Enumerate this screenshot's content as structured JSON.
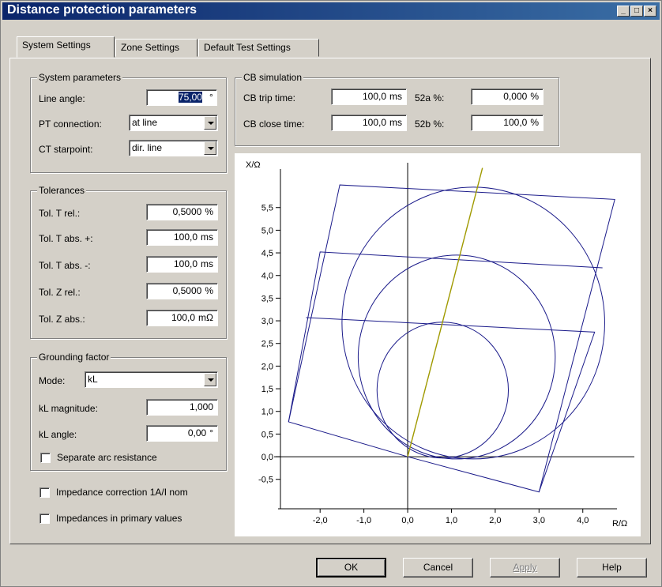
{
  "window": {
    "title": "Distance protection parameters"
  },
  "tabs": [
    "System Settings",
    "Zone Settings",
    "Default Test Settings"
  ],
  "system": {
    "title": "System parameters",
    "line_angle_label": "Line angle:",
    "line_angle": "75,00",
    "line_angle_unit": "°",
    "pt_label": "PT connection:",
    "pt_value": "at line",
    "ct_label": "CT starpoint:",
    "ct_value": "dir. line"
  },
  "cb": {
    "title": "CB simulation",
    "trip_label": "CB trip time:",
    "trip_value": "100,0",
    "trip_unit": "ms",
    "close_label": "CB close time:",
    "close_value": "100,0",
    "close_unit": "ms",
    "a52_label": "52a %:",
    "a52_value": "0,000",
    "a52_unit": "%",
    "b52_label": "52b %:",
    "b52_value": "100,0",
    "b52_unit": "%"
  },
  "tolerances": {
    "title": "Tolerances",
    "rows": [
      {
        "label": "Tol. T rel.:",
        "value": "0,5000",
        "unit": "%"
      },
      {
        "label": "Tol. T abs. +:",
        "value": "100,0",
        "unit": "ms"
      },
      {
        "label": "Tol. T abs. -:",
        "value": "100,0",
        "unit": "ms"
      },
      {
        "label": "Tol. Z rel.:",
        "value": "0,5000",
        "unit": "%"
      },
      {
        "label": "Tol. Z abs.:",
        "value": "100,0",
        "unit": "mΩ"
      }
    ]
  },
  "grounding": {
    "title": "Grounding factor",
    "mode_label": "Mode:",
    "mode_value": "kL",
    "mag_label": "kL magnitude:",
    "mag_value": "1,000",
    "angle_label": "kL angle:",
    "angle_value": "0,00",
    "angle_unit": "°",
    "separate_arc": "Separate arc resistance"
  },
  "checks": {
    "imp_correction": "Impedance correction 1A/I nom",
    "imp_primary": "Impedances in primary values"
  },
  "buttons": {
    "ok": "OK",
    "cancel": "Cancel",
    "apply": "Apply",
    "help": "Help"
  },
  "chart_data": {
    "type": "scatter",
    "xlabel": "R/Ω",
    "ylabel": "X/Ω",
    "xlim": [
      -3.05,
      4.6
    ],
    "ylim": [
      -1.15,
      6.35
    ],
    "x_ticks": [
      -2.0,
      -1.0,
      0.0,
      1.0,
      2.0,
      3.0,
      4.0
    ],
    "x_tick_labels": [
      "-2,0",
      "-1,0",
      "0,0",
      "1,0",
      "2,0",
      "3,0",
      "4,0"
    ],
    "y_ticks": [
      -0.5,
      0.0,
      0.5,
      1.0,
      1.5,
      2.0,
      2.5,
      3.0,
      3.5,
      4.0,
      4.5,
      5.0,
      5.5
    ],
    "y_tick_labels": [
      "-0,5",
      "0,0",
      "0,5",
      "1,0",
      "1,5",
      "2,0",
      "2,5",
      "3,0",
      "3,5",
      "4,0",
      "4,5",
      "5,0",
      "5,5"
    ],
    "line_angle_deg": 75,
    "line_color": "#a09a00",
    "zone_color": "#1b1b8a",
    "circles": [
      {
        "cx": 0.8,
        "cy": 1.47,
        "r": 1.5
      },
      {
        "cx": 1.12,
        "cy": 2.2,
        "r": 2.25
      },
      {
        "cx": 1.5,
        "cy": 2.95,
        "r": 3.0
      }
    ],
    "polylines": [
      [
        [
          0.0,
          0.0
        ],
        [
          -2.72,
          0.77
        ],
        [
          -2.0,
          4.52
        ],
        [
          4.45,
          4.17
        ]
      ],
      [
        [
          -2.32,
          3.07
        ],
        [
          4.27,
          2.75
        ],
        [
          3.0,
          -0.78
        ],
        [
          0.0,
          0.0
        ]
      ],
      [
        [
          -2.72,
          0.77
        ],
        [
          -1.55,
          6.0
        ],
        [
          4.73,
          5.68
        ],
        [
          3.0,
          -0.78
        ]
      ]
    ]
  }
}
